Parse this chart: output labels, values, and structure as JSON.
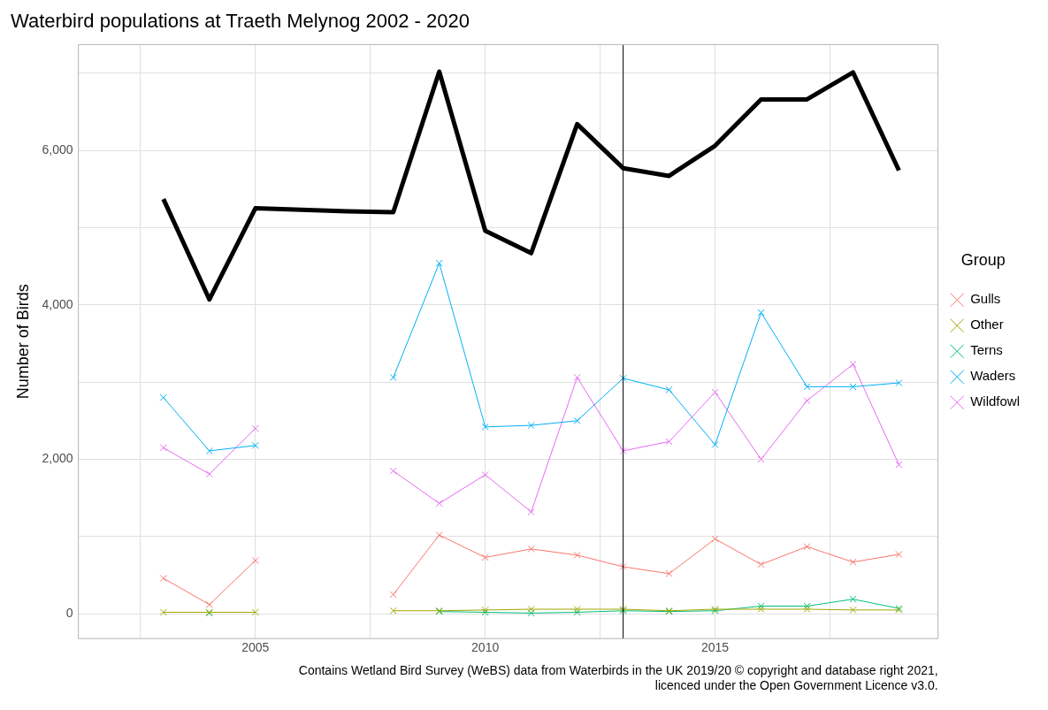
{
  "chart_data": {
    "type": "line",
    "title": "Waterbird populations at Traeth Melynog 2002 - 2020",
    "ylabel": "Number of Birds",
    "legend_title": "Group",
    "annotations": [
      "Contains Wetland Bird Survey (WeBS) data from Waterbirds in the UK 2019/20 © copyright and database right 2021,",
      "licenced under the Open Government Licence v3.0."
    ],
    "x": [
      2003,
      2004,
      2005,
      2006,
      2007,
      2008,
      2009,
      2010,
      2011,
      2012,
      2013,
      2014,
      2015,
      2016,
      2017,
      2018,
      2019
    ],
    "series": [
      {
        "color": "#000000",
        "marker": "none",
        "values": [
          5370,
          4070,
          5250,
          5230,
          5210,
          5200,
          7020,
          4960,
          4670,
          6340,
          5770,
          5670,
          6060,
          6660,
          6660,
          7010,
          5740
        ]
      },
      {
        "name": "Gulls",
        "color": "#f8766d",
        "marker": "cross",
        "values": [
          460,
          120,
          690,
          null,
          null,
          250,
          1020,
          730,
          840,
          760,
          610,
          520,
          970,
          640,
          870,
          670,
          770
        ]
      },
      {
        "name": "Other",
        "color": "#a3a500",
        "marker": "cross",
        "values": [
          20,
          20,
          20,
          null,
          null,
          40,
          40,
          50,
          60,
          60,
          60,
          40,
          60,
          60,
          60,
          50,
          50
        ]
      },
      {
        "name": "Terns",
        "color": "#00bf7d",
        "marker": "cross",
        "values": [
          null,
          10,
          null,
          null,
          null,
          null,
          30,
          20,
          10,
          20,
          40,
          30,
          40,
          100,
          100,
          190,
          70
        ]
      },
      {
        "name": "Waders",
        "color": "#00b0f6",
        "marker": "cross",
        "values": [
          2800,
          2110,
          2180,
          null,
          null,
          3060,
          4540,
          2420,
          2440,
          2500,
          3050,
          2900,
          2190,
          3900,
          2940,
          2940,
          2990
        ]
      },
      {
        "name": "Wildfowl",
        "color": "#e76bf3",
        "marker": "cross",
        "values": [
          2150,
          1810,
          2400,
          null,
          null,
          1850,
          1430,
          1800,
          1320,
          3060,
          2110,
          2230,
          2870,
          2000,
          2760,
          3230,
          1930
        ]
      }
    ],
    "xlim": [
      2001.15,
      2019.85
    ],
    "xticks": [
      {
        "value": 2002.5,
        "label": null
      },
      2005,
      {
        "value": 2007.5,
        "label": null
      },
      2010,
      {
        "value": 2012.5,
        "label": null
      },
      2015,
      {
        "value": 2017.5,
        "label": null
      }
    ],
    "ylim": [
      -320,
      7370
    ],
    "yticks": [
      0,
      {
        "value": 1000,
        "label": null
      },
      {
        "value": 2000,
        "label": "2,000"
      },
      {
        "value": 3000,
        "label": null
      },
      {
        "value": 4000,
        "label": "4,000"
      },
      {
        "value": 5000,
        "label": null
      },
      {
        "value": 6000,
        "label": "6,000"
      },
      {
        "value": 7000,
        "label": null
      }
    ],
    "ref_lines": [
      {
        "axis": "x",
        "value": 2013,
        "color": "#000000"
      }
    ],
    "grid": true,
    "legend": "right"
  }
}
